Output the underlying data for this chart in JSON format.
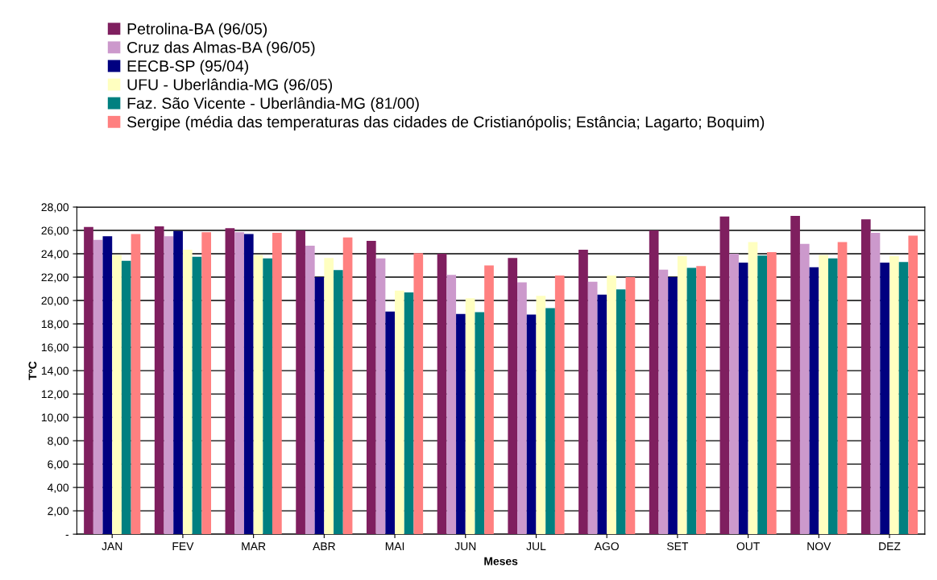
{
  "chart_data": {
    "type": "bar",
    "xlabel": "Meses",
    "ylabel": "TºC",
    "categories": [
      "JAN",
      "FEV",
      "MAR",
      "ABR",
      "MAI",
      "JUN",
      "JUL",
      "AGO",
      "SET",
      "OUT",
      "NOV",
      "DEZ"
    ],
    "series": [
      {
        "name": "Petrolina-BA (96/05)",
        "color": "#7f1f5f",
        "values": [
          26.3,
          26.35,
          26.2,
          26.0,
          25.1,
          24.0,
          23.65,
          24.35,
          26.0,
          27.2,
          27.25,
          26.95
        ]
      },
      {
        "name": "Cruz das Almas-BA (96/05)",
        "color": "#cc99cc",
        "values": [
          25.2,
          25.5,
          25.85,
          24.7,
          23.6,
          22.2,
          21.55,
          21.6,
          22.65,
          24.0,
          24.85,
          25.8
        ]
      },
      {
        "name": "EECB-SP (95/04)",
        "color": "#000080",
        "values": [
          25.5,
          25.95,
          25.7,
          22.0,
          19.05,
          18.85,
          18.8,
          20.5,
          22.0,
          23.25,
          22.85,
          23.25
        ]
      },
      {
        "name": "UFU - Uberlândia-MG (96/05)",
        "color": "#ffffc0",
        "values": [
          23.9,
          24.35,
          23.9,
          23.65,
          20.85,
          20.2,
          20.4,
          22.15,
          23.8,
          25.0,
          23.9,
          23.8
        ]
      },
      {
        "name": "Faz. São Vicente - Uberlândia-MG (81/00)",
        "color": "#008080",
        "values": [
          23.4,
          23.75,
          23.6,
          22.6,
          20.7,
          19.0,
          19.35,
          20.95,
          22.8,
          23.85,
          23.6,
          23.3
        ]
      },
      {
        "name": "Sergipe (média das temperaturas das cidades de Cristianópolis; Estância; Lagarto; Boquim)",
        "color": "#ff8080",
        "values": [
          25.7,
          25.85,
          25.8,
          25.4,
          24.05,
          23.0,
          22.15,
          22.0,
          22.95,
          24.15,
          25.0,
          25.55
        ]
      }
    ],
    "ylim": [
      0,
      28
    ],
    "yticks": [
      {
        "value": 0,
        "label": "-"
      },
      {
        "value": 2,
        "label": "2,00"
      },
      {
        "value": 4,
        "label": "4,00"
      },
      {
        "value": 6,
        "label": "6,00"
      },
      {
        "value": 8,
        "label": "8,00"
      },
      {
        "value": 10,
        "label": "10,00"
      },
      {
        "value": 12,
        "label": "12,00"
      },
      {
        "value": 14,
        "label": "14,00"
      },
      {
        "value": 16,
        "label": "16,00"
      },
      {
        "value": 18,
        "label": "18,00"
      },
      {
        "value": 20,
        "label": "20,00"
      },
      {
        "value": 22,
        "label": "22,00"
      },
      {
        "value": 24,
        "label": "24,00"
      },
      {
        "value": 26,
        "label": "26,00"
      },
      {
        "value": 28,
        "label": "28,00"
      }
    ],
    "grid": "y",
    "legend": "top left"
  }
}
